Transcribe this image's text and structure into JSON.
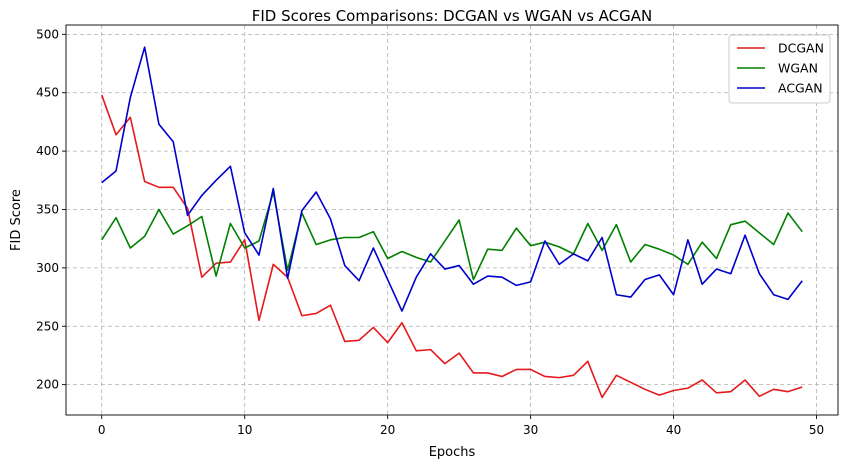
{
  "chart_data": {
    "type": "line",
    "title": "FID Scores Comparisons: DCGAN vs WGAN vs ACGAN",
    "xlabel": "Epochs",
    "ylabel": "FID Score",
    "xlim": [
      -2.5,
      51.5
    ],
    "ylim": [
      174,
      508
    ],
    "xticks": [
      0,
      10,
      20,
      30,
      40,
      50
    ],
    "yticks": [
      200,
      250,
      300,
      350,
      400,
      450,
      500
    ],
    "grid": true,
    "legend_position": "top-right",
    "x": [
      0,
      1,
      2,
      3,
      4,
      5,
      6,
      7,
      8,
      9,
      10,
      11,
      12,
      13,
      14,
      15,
      16,
      17,
      18,
      19,
      20,
      21,
      22,
      23,
      24,
      25,
      26,
      27,
      28,
      29,
      30,
      31,
      32,
      33,
      34,
      35,
      36,
      37,
      38,
      39,
      40,
      41,
      42,
      43,
      44,
      45,
      46,
      47,
      48,
      49
    ],
    "series": [
      {
        "name": "DCGAN",
        "color": "#e41a1c",
        "values": [
          448,
          414,
          429,
          374,
          369,
          369,
          351,
          292,
          304,
          305,
          324,
          255,
          303,
          292,
          259,
          261,
          268,
          237,
          238,
          249,
          236,
          253,
          229,
          230,
          218,
          227,
          210,
          210,
          207,
          213,
          213,
          207,
          206,
          208,
          220,
          189,
          208,
          202,
          196,
          191,
          195,
          197,
          204,
          193,
          194,
          204,
          190,
          196,
          194,
          198
        ]
      },
      {
        "name": "WGAN",
        "color": "#008000",
        "values": [
          324,
          343,
          317,
          327,
          350,
          329,
          336,
          344,
          293,
          338,
          317,
          323,
          365,
          298,
          347,
          320,
          324,
          326,
          326,
          331,
          308,
          314,
          309,
          305,
          323,
          341,
          290,
          316,
          315,
          334,
          319,
          322,
          318,
          312,
          338,
          315,
          337,
          305,
          320,
          316,
          311,
          303,
          322,
          308,
          337,
          340,
          330,
          320,
          347,
          331
        ]
      },
      {
        "name": "ACGAN",
        "color": "#0000cd",
        "values": [
          373,
          383,
          446,
          489,
          423,
          408,
          345,
          362,
          375,
          387,
          330,
          311,
          368,
          291,
          349,
          365,
          342,
          302,
          289,
          317,
          290,
          263,
          292,
          312,
          299,
          302,
          286,
          293,
          292,
          285,
          288,
          323,
          303,
          312,
          306,
          326,
          277,
          275,
          290,
          294,
          277,
          324,
          286,
          299,
          295,
          328,
          295,
          277,
          273,
          289
        ]
      }
    ]
  }
}
